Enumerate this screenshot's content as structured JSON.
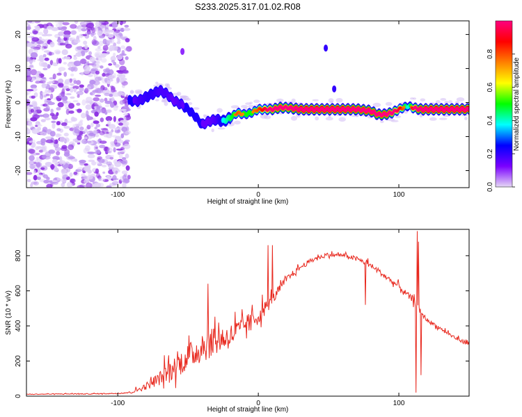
{
  "colors": {
    "background": "#ffffff",
    "axis": "#000000",
    "snr_line": "#e8281e",
    "noise_purple": "#8a2be2"
  },
  "chart_data": [
    {
      "type": "heatmap",
      "title": "S233.2025.317.01.02.R08",
      "xlabel": "Height of straight line (km)",
      "ylabel": "Frequency (Hz)",
      "xlim": [
        -165,
        150
      ],
      "ylim": [
        -25,
        24
      ],
      "x_ticks": [
        -100,
        0,
        100
      ],
      "y_ticks": [
        -20,
        -10,
        0,
        10,
        20
      ],
      "colorbar": {
        "label": "Normalized spectral amplitude",
        "range": [
          0,
          1
        ],
        "ticks": [
          "0.0",
          "0.2",
          "0.4",
          "0.6",
          "0.8"
        ],
        "tick_values": [
          0.0,
          0.2,
          0.4,
          0.6,
          0.8
        ],
        "colors": [
          "#e6d8f5",
          "#7a00ff",
          "#0000ff",
          "#00ffff",
          "#00ff00",
          "#ffff00",
          "#ff8000",
          "#ff0000",
          "#ff007f"
        ]
      },
      "noise_region": {
        "x_range": [
          -165,
          -92
        ],
        "freq_range": [
          -25,
          24
        ]
      },
      "signal_track": {
        "description_series": "Dominant Doppler frequency of the signal vs height",
        "x": [
          -92,
          -85,
          -78,
          -70,
          -65,
          -60,
          -55,
          -50,
          -45,
          -40,
          -35,
          -30,
          -25,
          -20,
          -15,
          -10,
          -5,
          0,
          5,
          10,
          15,
          20,
          30,
          40,
          50,
          60,
          70,
          80,
          85,
          90,
          95,
          100,
          103,
          107,
          110,
          115,
          120,
          130,
          140,
          150
        ],
        "freq": [
          0.5,
          0.5,
          2,
          3.5,
          2.5,
          0.5,
          -0.5,
          -2,
          -4,
          -6.5,
          -5.5,
          -5,
          -5.5,
          -4.5,
          -3,
          -3.5,
          -3,
          -2,
          -2,
          -2,
          -1.5,
          -1.5,
          -2,
          -2,
          -2,
          -2,
          -2,
          -2.5,
          -3.5,
          -3.5,
          -3,
          -2,
          -1.5,
          -1,
          -1.5,
          -2,
          -2,
          -2,
          -2,
          -2
        ],
        "amplitude": [
          0.2,
          0.3,
          0.35,
          0.3,
          0.3,
          0.25,
          0.3,
          0.15,
          0.15,
          0.25,
          0.25,
          0.3,
          0.4,
          0.5,
          0.6,
          0.55,
          0.55,
          0.6,
          0.7,
          0.8,
          0.85,
          0.8,
          0.95,
          0.95,
          0.95,
          0.95,
          0.9,
          0.9,
          0.85,
          0.9,
          0.8,
          0.7,
          0.6,
          0.4,
          0.7,
          0.9,
          0.95,
          0.95,
          0.95,
          0.95
        ]
      },
      "spots": [
        {
          "x": 48,
          "freq": 16,
          "amplitude": 0.2
        },
        {
          "x": 54,
          "freq": 4,
          "amplitude": 0.2
        },
        {
          "x": -54,
          "freq": 15,
          "amplitude": 0.1
        }
      ]
    },
    {
      "type": "line",
      "xlabel": "Height of straight line (km)",
      "ylabel": "SNR (10 * v/v)",
      "xlim": [
        -165,
        150
      ],
      "ylim": [
        0,
        950
      ],
      "x_ticks": [
        -100,
        0,
        100
      ],
      "y_ticks": [
        0,
        200,
        400,
        600,
        800
      ],
      "series": [
        {
          "name": "SNR",
          "x": [
            -165,
            -140,
            -120,
            -100,
            -90,
            -80,
            -70,
            -60,
            -50,
            -40,
            -30,
            -20,
            -10,
            0,
            10,
            20,
            30,
            40,
            50,
            60,
            70,
            80,
            90,
            100,
            110,
            115,
            120,
            130,
            140,
            150
          ],
          "values": [
            10,
            12,
            12,
            15,
            20,
            50,
            90,
            140,
            200,
            250,
            290,
            320,
            380,
            440,
            540,
            660,
            730,
            780,
            800,
            800,
            780,
            740,
            680,
            620,
            540,
            480,
            430,
            380,
            330,
            290
          ],
          "spread": [
            4,
            4,
            5,
            6,
            10,
            40,
            80,
            130,
            150,
            170,
            160,
            140,
            120,
            100,
            60,
            40,
            30,
            25,
            20,
            20,
            25,
            30,
            30,
            30,
            40,
            30,
            25,
            20,
            20,
            20
          ]
        }
      ],
      "spikes": [
        {
          "x": 7,
          "value": 860
        },
        {
          "x": 10,
          "value": 860
        },
        {
          "x": -36,
          "value": 640
        },
        {
          "x": 76,
          "value": 520
        },
        {
          "x": 112,
          "value": 20
        },
        {
          "x": 113,
          "value": 940
        },
        {
          "x": 114,
          "value": 880
        },
        {
          "x": 116,
          "value": 120
        }
      ]
    }
  ]
}
